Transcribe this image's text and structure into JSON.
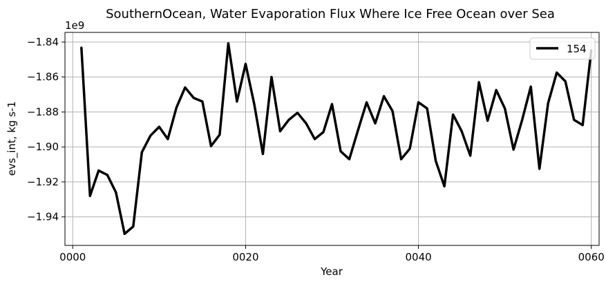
{
  "chart_data": {
    "type": "line",
    "title": "SouthernOcean, Water Evaporation Flux Where Ice Free Ocean over Sea",
    "xlabel": "Year",
    "ylabel": "evs_int, kg s-1",
    "y_exponent_label": "1e9",
    "xlim": [
      -0.9,
      60.9
    ],
    "ylim": [
      -1.9563,
      -1.8345
    ],
    "grid": true,
    "legend_position": "top-right",
    "x_ticks": [
      {
        "value": 0,
        "label": "0000"
      },
      {
        "value": 20,
        "label": "0020"
      },
      {
        "value": 40,
        "label": "0040"
      },
      {
        "value": 60,
        "label": "0060"
      }
    ],
    "y_ticks": [
      {
        "value": -1.84,
        "label": "−1.84"
      },
      {
        "value": -1.86,
        "label": "−1.86"
      },
      {
        "value": -1.88,
        "label": "−1.88"
      },
      {
        "value": -1.9,
        "label": "−1.90"
      },
      {
        "value": -1.92,
        "label": "−1.92"
      },
      {
        "value": -1.94,
        "label": "−1.94"
      }
    ],
    "series": [
      {
        "name": "154",
        "color": "#000000",
        "x": [
          1,
          2,
          3,
          4,
          5,
          6,
          7,
          8,
          9,
          10,
          11,
          12,
          13,
          14,
          15,
          16,
          17,
          18,
          19,
          20,
          21,
          22,
          23,
          24,
          25,
          26,
          27,
          28,
          29,
          30,
          31,
          32,
          33,
          34,
          35,
          36,
          37,
          38,
          39,
          40,
          41,
          42,
          43,
          44,
          45,
          46,
          47,
          48,
          49,
          50,
          51,
          52,
          53,
          54,
          55,
          56,
          57,
          58,
          59,
          60
        ],
        "values": [
          -1.843,
          -1.928,
          -1.9135,
          -1.916,
          -1.926,
          -1.9497,
          -1.9455,
          -1.903,
          -1.8935,
          -1.8885,
          -1.8955,
          -1.8775,
          -1.866,
          -1.872,
          -1.874,
          -1.8995,
          -1.893,
          -1.8408,
          -1.874,
          -1.8525,
          -1.8755,
          -1.904,
          -1.86,
          -1.891,
          -1.8845,
          -1.8805,
          -1.8865,
          -1.8955,
          -1.8915,
          -1.8755,
          -1.9025,
          -1.907,
          -1.8905,
          -1.8745,
          -1.8865,
          -1.871,
          -1.8795,
          -1.907,
          -1.901,
          -1.8745,
          -1.878,
          -1.908,
          -1.9225,
          -1.8815,
          -1.891,
          -1.905,
          -1.863,
          -1.885,
          -1.8675,
          -1.878,
          -1.9015,
          -1.8845,
          -1.8655,
          -1.9125,
          -1.875,
          -1.8575,
          -1.8625,
          -1.8845,
          -1.8875,
          -1.8445
        ]
      }
    ]
  }
}
